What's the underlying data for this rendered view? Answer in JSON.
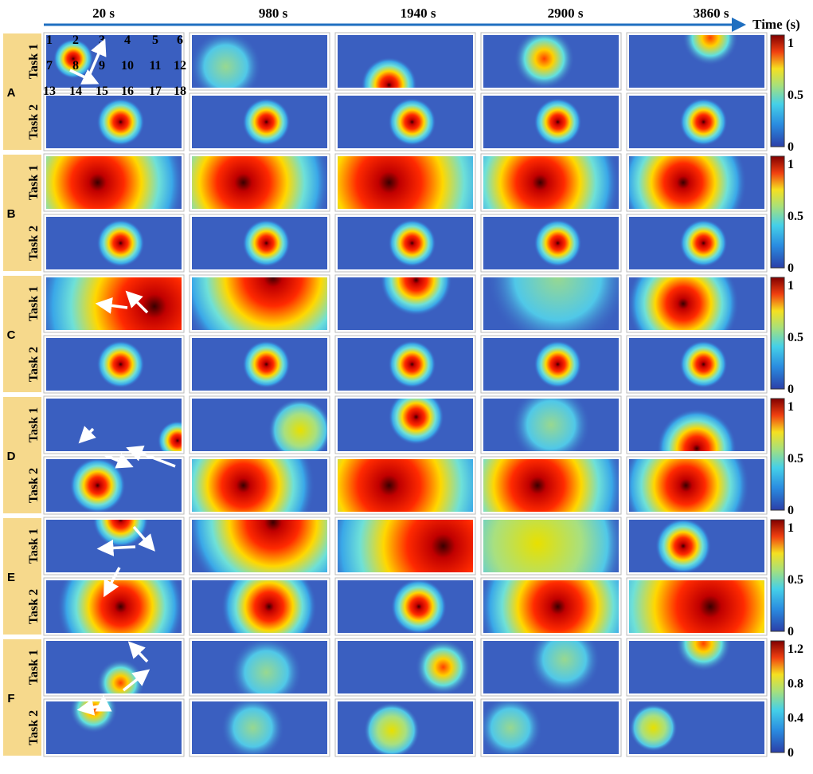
{
  "header": {
    "times": [
      "20 s",
      "980 s",
      "1940 s",
      "2900 s",
      "3860 s"
    ],
    "axis_label": "Time (s)"
  },
  "groups": [
    {
      "label": "A",
      "tasks": [
        "Task 1",
        "Task 2"
      ],
      "colorbar_ticks": [
        "0",
        "0.5",
        "1"
      ]
    },
    {
      "label": "B",
      "tasks": [
        "Task 1",
        "Task 2"
      ],
      "colorbar_ticks": [
        "0",
        "0.5",
        "1"
      ]
    },
    {
      "label": "C",
      "tasks": [
        "Task 1",
        "Task 2"
      ],
      "colorbar_ticks": [
        "0",
        "0.5",
        "1"
      ]
    },
    {
      "label": "D",
      "tasks": [
        "Task 1",
        "Task 2"
      ],
      "colorbar_ticks": [
        "0",
        "0.5",
        "1"
      ]
    },
    {
      "label": "E",
      "tasks": [
        "Task 1",
        "Task 2"
      ],
      "colorbar_ticks": [
        "0",
        "0.5",
        "1"
      ]
    },
    {
      "label": "F",
      "tasks": [
        "Task 1",
        "Task 2"
      ],
      "colorbar_ticks": [
        "0",
        "0.4",
        "0.8",
        "1.2"
      ]
    }
  ],
  "grid_numbers": [
    "1",
    "2",
    "3",
    "4",
    "5",
    "6",
    "7",
    "8",
    "9",
    "10",
    "11",
    "12",
    "13",
    "14",
    "15",
    "16",
    "17",
    "18"
  ]
}
